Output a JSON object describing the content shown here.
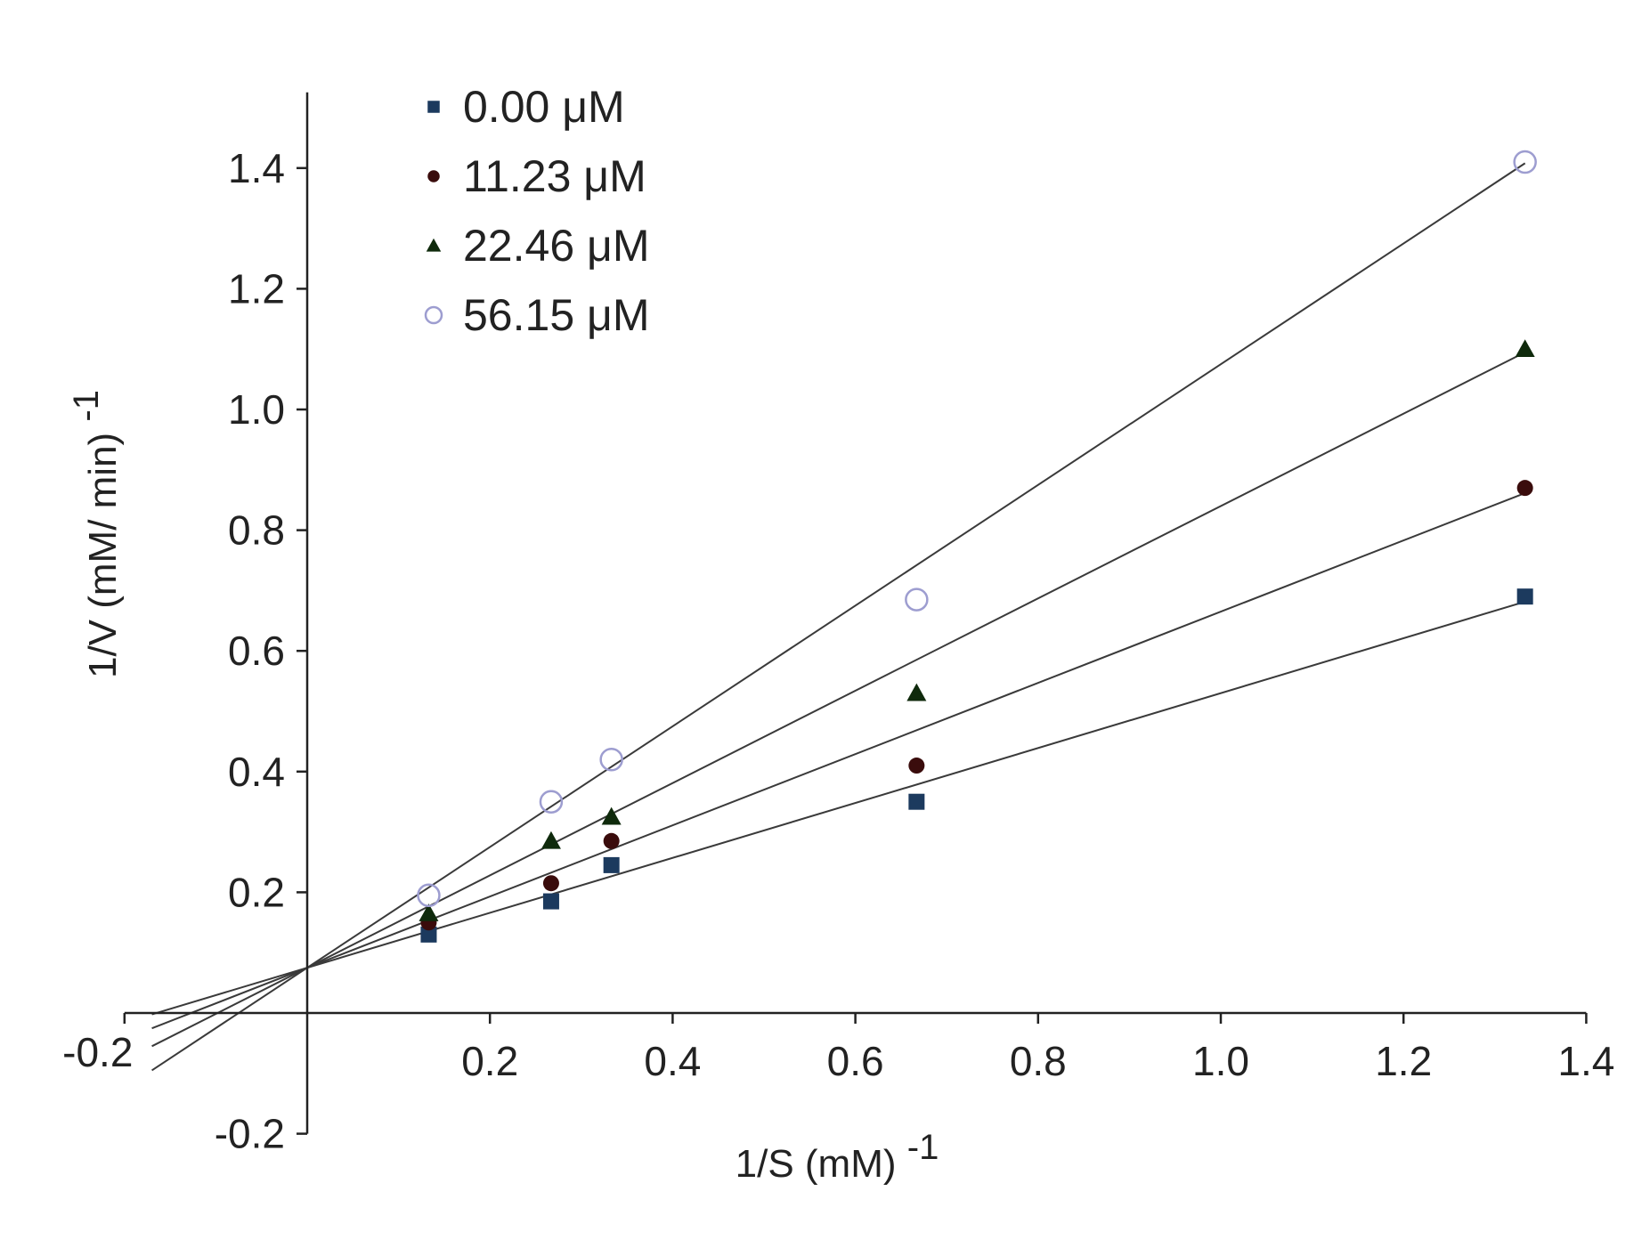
{
  "chart_data": {
    "type": "scatter",
    "title": "",
    "xlabel": "1/S (mM)",
    "xlabel_exponent": "-1",
    "ylabel": "1/V (mM/ min)",
    "ylabel_exponent": "-1",
    "xlim": [
      -0.2,
      1.4
    ],
    "ylim": [
      -0.2,
      1.4
    ],
    "grid": false,
    "legend_placement": "top-left",
    "x_ticks": [
      {
        "value": -0.2,
        "label": "-0.2"
      },
      {
        "value": 0.2,
        "label": "0.2"
      },
      {
        "value": 0.4,
        "label": "0.4"
      },
      {
        "value": 0.6,
        "label": "0.6"
      },
      {
        "value": 0.8,
        "label": "0.8"
      },
      {
        "value": 1.0,
        "label": "1.0"
      },
      {
        "value": 1.2,
        "label": "1.2"
      },
      {
        "value": 1.4,
        "label": "1.4"
      }
    ],
    "y_ticks": [
      {
        "value": -0.2,
        "label": "-0.2"
      },
      {
        "value": 0.2,
        "label": "0.2"
      },
      {
        "value": 0.4,
        "label": "0.4"
      },
      {
        "value": 0.6,
        "label": "0.6"
      },
      {
        "value": 0.8,
        "label": "0.8"
      },
      {
        "value": 1.0,
        "label": "1.0"
      },
      {
        "value": 1.2,
        "label": "1.2"
      },
      {
        "value": 1.4,
        "label": "1.4"
      }
    ],
    "x": [
      0.133,
      0.267,
      0.333,
      0.667,
      1.333
    ],
    "series": [
      {
        "name": "0.00 μM",
        "marker": "square",
        "color": "#1c3a5e",
        "values": [
          0.13,
          0.185,
          0.245,
          0.35,
          0.69
        ],
        "fit": {
          "slope": 0.455,
          "intercept": 0.075
        }
      },
      {
        "name": "11.23 μM",
        "marker": "circle",
        "color": "#3a0c0c",
        "values": [
          0.15,
          0.215,
          0.285,
          0.41,
          0.87
        ],
        "fit": {
          "slope": 0.59,
          "intercept": 0.075
        }
      },
      {
        "name": "22.46 μM",
        "marker": "triangle",
        "color": "#0f2a0c",
        "values": [
          0.165,
          0.285,
          0.325,
          0.53,
          1.1
        ],
        "fit": {
          "slope": 0.765,
          "intercept": 0.075
        }
      },
      {
        "name": "56.15 μM",
        "marker": "open-circle",
        "color": "#9d9dd0",
        "values": [
          0.195,
          0.35,
          0.42,
          0.685,
          1.41
        ],
        "fit": {
          "slope": 1.0,
          "intercept": 0.075
        }
      }
    ]
  }
}
